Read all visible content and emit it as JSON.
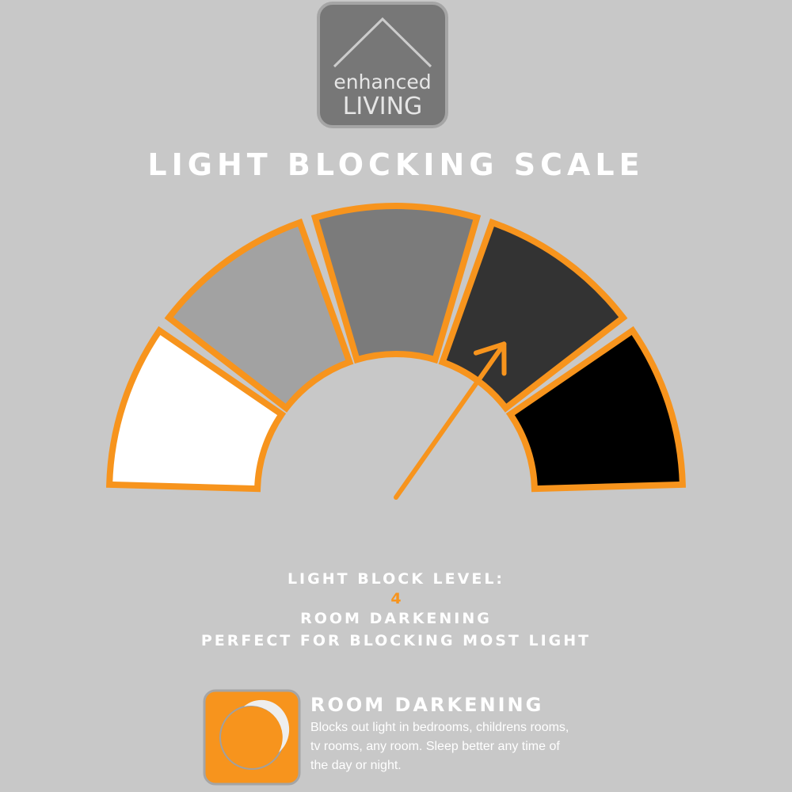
{
  "logo": {
    "line1": "enhanced",
    "line2": "LIVING"
  },
  "title": "LIGHT BLOCKING SCALE",
  "gauge": {
    "level": 4,
    "segments": [
      {
        "color": "#ffffff"
      },
      {
        "color": "#a2a2a2"
      },
      {
        "color": "#7b7b7b"
      },
      {
        "color": "#333333"
      },
      {
        "color": "#000000"
      }
    ],
    "outline_color": "#f7941d"
  },
  "summary": {
    "label": "LIGHT BLOCK LEVEL:",
    "level_text": "4",
    "name": "ROOM DARKENING",
    "tagline": "PERFECT FOR BLOCKING MOST LIGHT"
  },
  "feature": {
    "title": "ROOM DARKENING",
    "body": "Blocks out light in bedrooms, childrens rooms, tv rooms, any room. Sleep better any time of the day or night."
  }
}
